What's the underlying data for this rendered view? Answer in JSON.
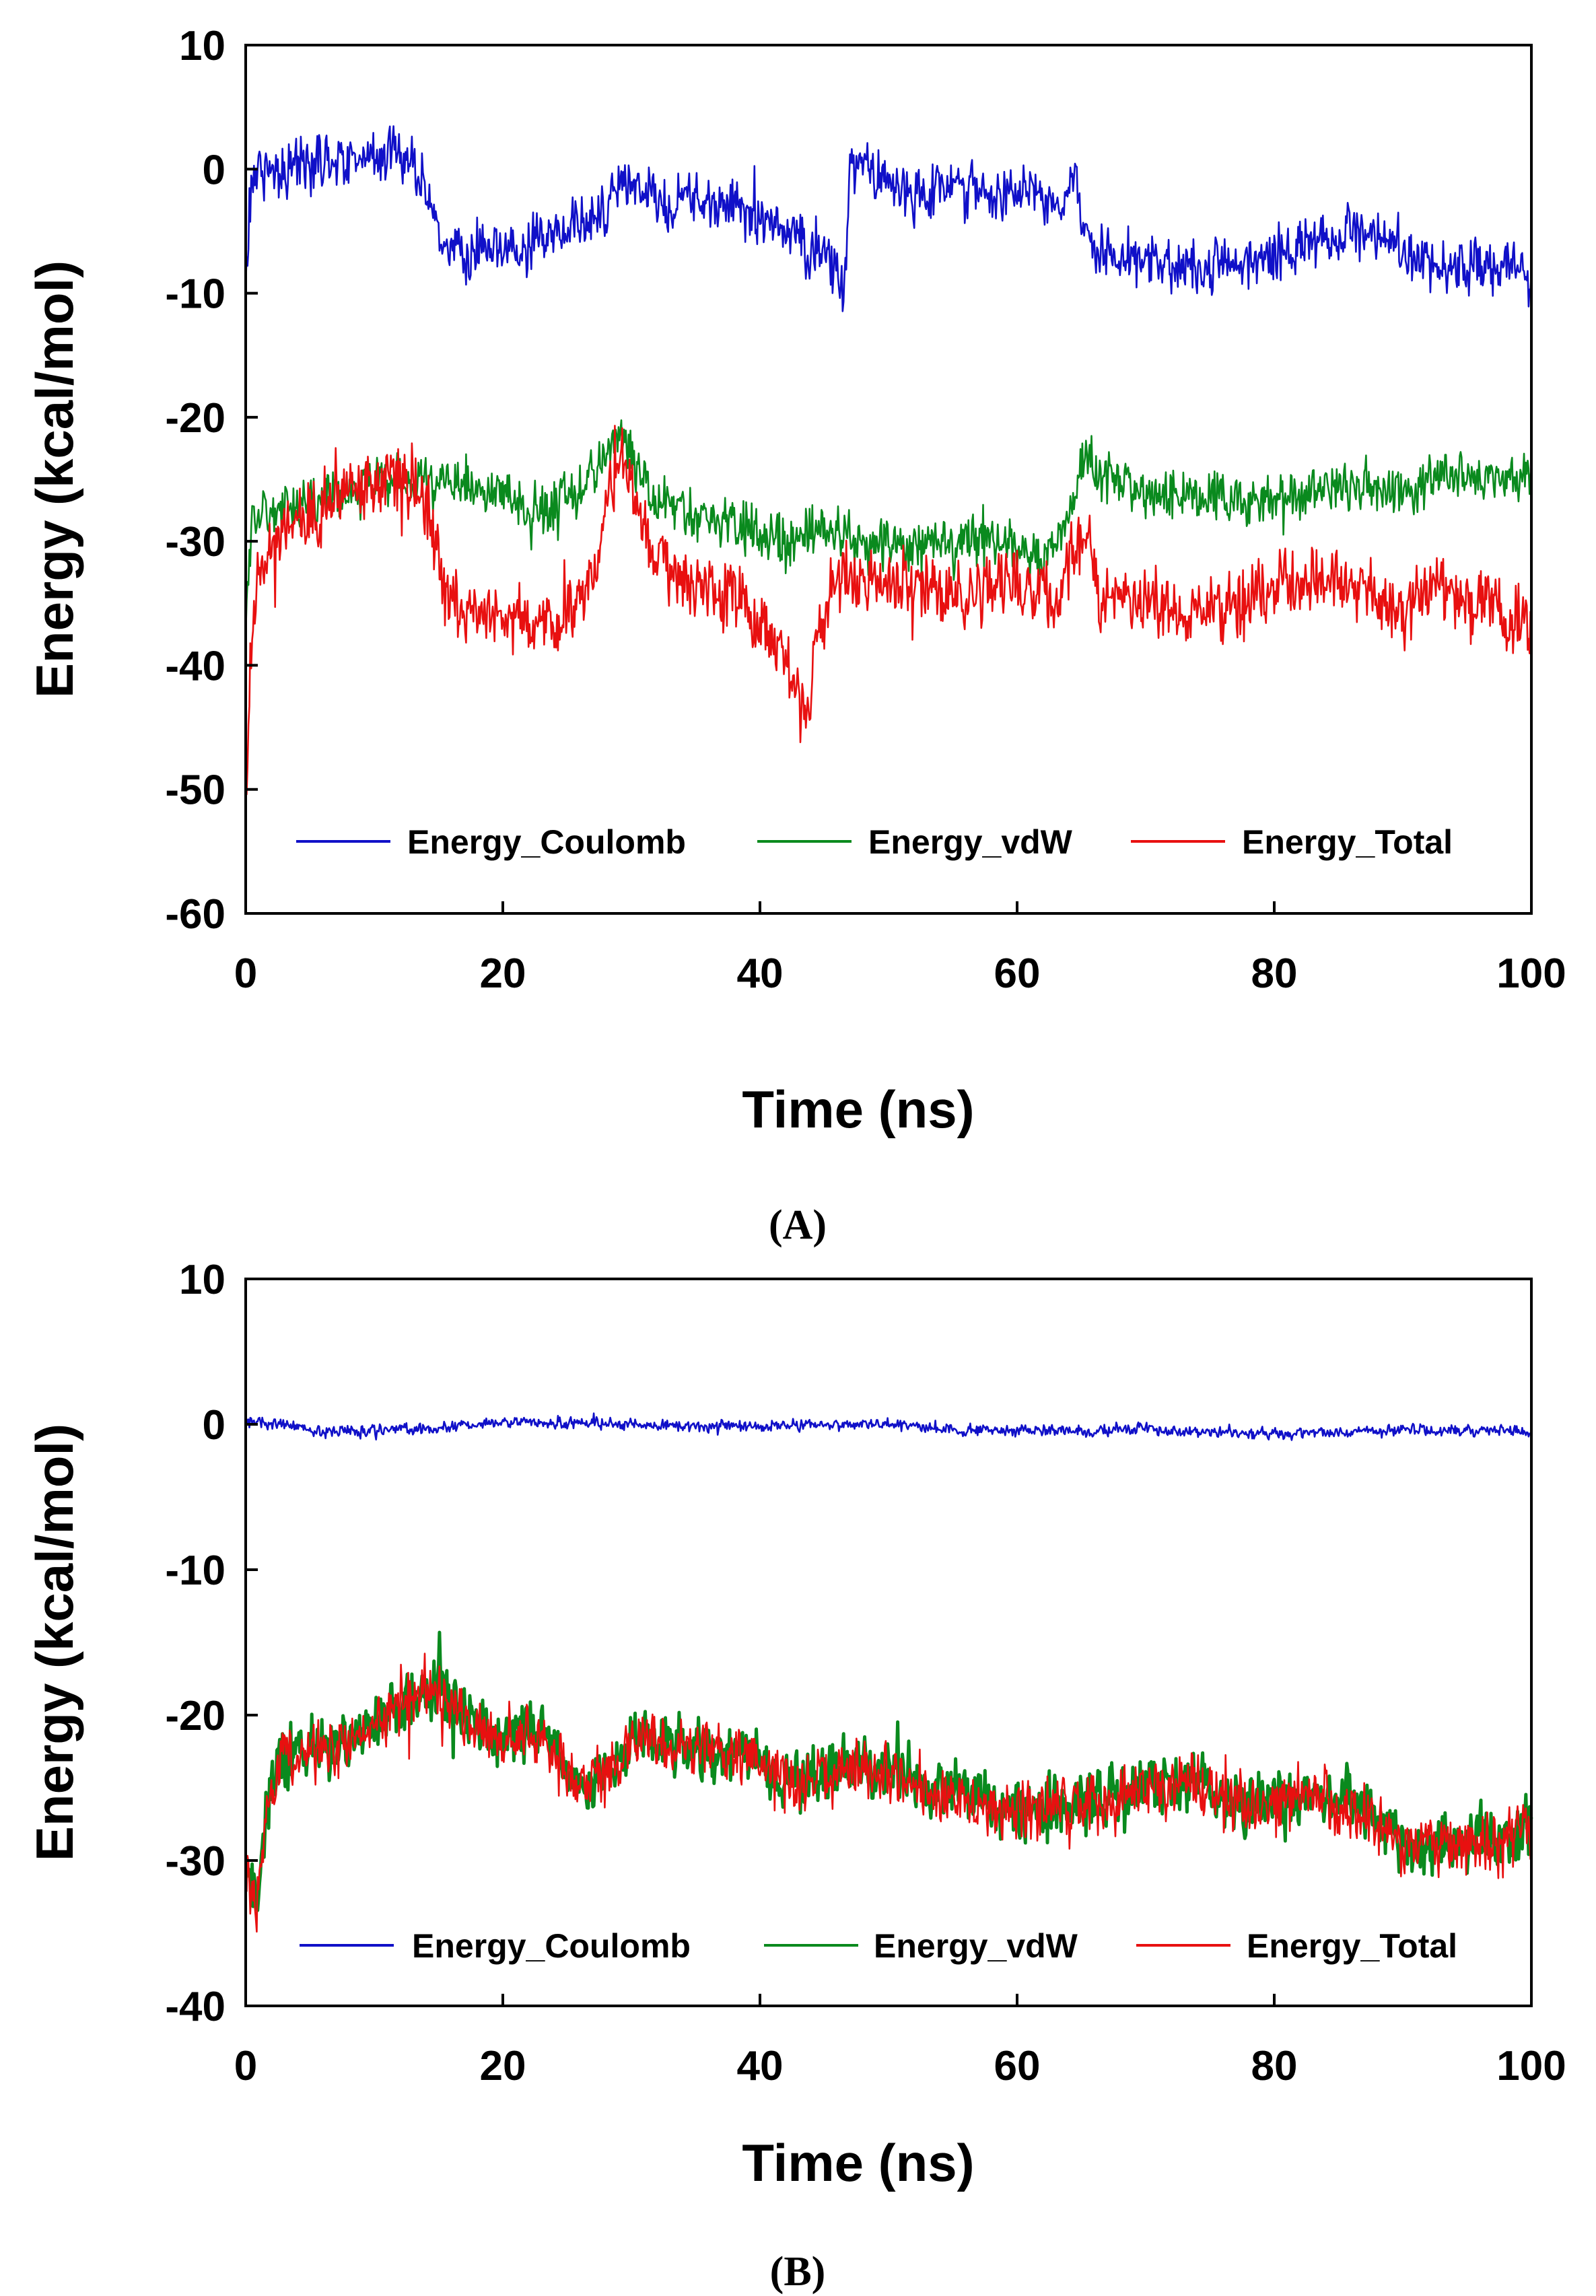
{
  "chart_data": [
    {
      "type": "line",
      "panel_label": "(A)",
      "title": "",
      "xlabel": "Time (ns)",
      "ylabel": "Energy (kcal/mol)",
      "xlim": [
        0,
        100
      ],
      "ylim": [
        -60,
        10
      ],
      "xticks": [
        0,
        20,
        40,
        60,
        80,
        100
      ],
      "yticks": [
        10,
        0,
        -10,
        -20,
        -30,
        -40,
        -50,
        -60
      ],
      "x_tick_labels": [
        "0",
        "20",
        "40",
        "60",
        "80",
        "100"
      ],
      "y_tick_labels": [
        "10",
        "0",
        "-10",
        "-20",
        "-30",
        "-40",
        "-50",
        "-60"
      ],
      "grid": false,
      "legend_position": "bottom",
      "series": [
        {
          "name": "Energy_Coulomb",
          "color": "#1010c8",
          "noise": 3.2,
          "anchors": [
            [
              0,
              -11
            ],
            [
              0.3,
              -2
            ],
            [
              0.8,
              0
            ],
            [
              3,
              0
            ],
            [
              7,
              1
            ],
            [
              10,
              1
            ],
            [
              12,
              1.5
            ],
            [
              13,
              0
            ],
            [
              14.5,
              -3
            ],
            [
              15.5,
              -6.5
            ],
            [
              18,
              -7
            ],
            [
              22,
              -6.5
            ],
            [
              25,
              -5
            ],
            [
              28,
              -3
            ],
            [
              30,
              -1
            ],
            [
              32,
              -3
            ],
            [
              35,
              -2.5
            ],
            [
              38,
              -3
            ],
            [
              40,
              -4
            ],
            [
              42,
              -5
            ],
            [
              44,
              -6.5
            ],
            [
              46,
              -8
            ],
            [
              46.6,
              -10
            ],
            [
              47,
              0
            ],
            [
              49,
              0
            ],
            [
              52,
              -2
            ],
            [
              55,
              -1
            ],
            [
              58,
              -2
            ],
            [
              61,
              -2
            ],
            [
              63,
              -2.5
            ],
            [
              64.5,
              -0.5
            ],
            [
              65.3,
              -5
            ],
            [
              67,
              -7
            ],
            [
              70,
              -7.5
            ],
            [
              73,
              -8
            ],
            [
              76,
              -8
            ],
            [
              80,
              -7
            ],
            [
              83,
              -6
            ],
            [
              86,
              -5
            ],
            [
              88,
              -5
            ],
            [
              90,
              -6.5
            ],
            [
              93,
              -8
            ],
            [
              96,
              -8
            ],
            [
              98,
              -8
            ],
            [
              100,
              -9
            ]
          ]
        },
        {
          "name": "Energy_vdW",
          "color": "#0a8a1e",
          "noise": 3.0,
          "anchors": [
            [
              0,
              -38
            ],
            [
              0.5,
              -28
            ],
            [
              2,
              -27.5
            ],
            [
              5,
              -27
            ],
            [
              8,
              -26
            ],
            [
              11,
              -25
            ],
            [
              13,
              -25.5
            ],
            [
              15,
              -25.5
            ],
            [
              18,
              -26
            ],
            [
              20,
              -26.5
            ],
            [
              23,
              -28
            ],
            [
              26,
              -26
            ],
            [
              28,
              -23
            ],
            [
              29,
              -21
            ],
            [
              30,
              -23
            ],
            [
              32,
              -27
            ],
            [
              35,
              -28
            ],
            [
              38,
              -28.5
            ],
            [
              40,
              -29
            ],
            [
              42,
              -30
            ],
            [
              44,
              -29
            ],
            [
              46,
              -29.5
            ],
            [
              48,
              -30
            ],
            [
              52,
              -30.5
            ],
            [
              56,
              -30
            ],
            [
              60,
              -30.5
            ],
            [
              62,
              -31
            ],
            [
              64,
              -29
            ],
            [
              65,
              -23
            ],
            [
              66,
              -24
            ],
            [
              67,
              -25
            ],
            [
              70,
              -26
            ],
            [
              75,
              -26.5
            ],
            [
              80,
              -26.5
            ],
            [
              85,
              -25.5
            ],
            [
              90,
              -26
            ],
            [
              93,
              -25
            ],
            [
              96,
              -24.5
            ],
            [
              100,
              -25
            ]
          ]
        },
        {
          "name": "Energy_Total",
          "color": "#e81010",
          "noise": 4.0,
          "anchors": [
            [
              0,
              -52
            ],
            [
              0.4,
              -40
            ],
            [
              1,
              -33
            ],
            [
              2,
              -30
            ],
            [
              5,
              -28
            ],
            [
              8,
              -26
            ],
            [
              11,
              -24.5
            ],
            [
              13,
              -25
            ],
            [
              14.5,
              -28
            ],
            [
              15.5,
              -35
            ],
            [
              18,
              -36
            ],
            [
              21,
              -36.5
            ],
            [
              24,
              -37
            ],
            [
              27,
              -33
            ],
            [
              28.5,
              -25
            ],
            [
              29.5,
              -24
            ],
            [
              31,
              -29
            ],
            [
              33,
              -33
            ],
            [
              36,
              -34
            ],
            [
              39,
              -35
            ],
            [
              41,
              -38
            ],
            [
              42.5,
              -41
            ],
            [
              43.5,
              -44
            ],
            [
              44.5,
              -38
            ],
            [
              46,
              -32
            ],
            [
              48,
              -33
            ],
            [
              52,
              -34
            ],
            [
              56,
              -34
            ],
            [
              60,
              -33.5
            ],
            [
              63,
              -35
            ],
            [
              64.5,
              -31
            ],
            [
              65.5,
              -30
            ],
            [
              66.5,
              -35
            ],
            [
              70,
              -35.5
            ],
            [
              74,
              -36
            ],
            [
              78,
              -35
            ],
            [
              81,
              -33
            ],
            [
              84,
              -33
            ],
            [
              87,
              -33.5
            ],
            [
              90,
              -36
            ],
            [
              93,
              -34
            ],
            [
              96,
              -35
            ],
            [
              98,
              -36
            ],
            [
              100,
              -37
            ]
          ]
        }
      ]
    },
    {
      "type": "line",
      "panel_label": "(B)",
      "title": "",
      "xlabel": "Time (ns)",
      "ylabel": "Energy (kcal/mol)",
      "xlim": [
        0,
        100
      ],
      "ylim": [
        -40,
        10
      ],
      "xticks": [
        0,
        20,
        40,
        60,
        80,
        100
      ],
      "yticks": [
        10,
        0,
        -10,
        -20,
        -30,
        -40
      ],
      "x_tick_labels": [
        "0",
        "20",
        "40",
        "60",
        "80",
        "100"
      ],
      "y_tick_labels": [
        "10",
        "0",
        "-10",
        "-20",
        "-30",
        "-40"
      ],
      "grid": false,
      "legend_position": "bottom",
      "series": [
        {
          "name": "Energy_Coulomb",
          "color": "#1010c8",
          "noise": 0.55,
          "anchors": [
            [
              0,
              0.2
            ],
            [
              3,
              0
            ],
            [
              6,
              -0.5
            ],
            [
              10,
              -0.4
            ],
            [
              15,
              -0.3
            ],
            [
              20,
              0.2
            ],
            [
              25,
              0.1
            ],
            [
              30,
              0
            ],
            [
              35,
              -0.1
            ],
            [
              40,
              -0.2
            ],
            [
              45,
              0
            ],
            [
              50,
              0
            ],
            [
              55,
              -0.4
            ],
            [
              60,
              -0.4
            ],
            [
              65,
              -0.5
            ],
            [
              70,
              -0.3
            ],
            [
              75,
              -0.6
            ],
            [
              80,
              -0.6
            ],
            [
              85,
              -0.5
            ],
            [
              90,
              -0.4
            ],
            [
              95,
              -0.4
            ],
            [
              100,
              -0.5
            ]
          ]
        },
        {
          "name": "Energy_vdW",
          "color": "#0a8a1e",
          "noise": 3.0,
          "anchors": [
            [
              0,
              -30
            ],
            [
              0.8,
              -34
            ],
            [
              1.5,
              -27
            ],
            [
              2.5,
              -23
            ],
            [
              5,
              -22
            ],
            [
              8,
              -22
            ],
            [
              11,
              -20
            ],
            [
              13,
              -18.5
            ],
            [
              15,
              -18
            ],
            [
              17,
              -20
            ],
            [
              20,
              -22
            ],
            [
              23,
              -21
            ],
            [
              26,
              -25
            ],
            [
              28,
              -24
            ],
            [
              30,
              -22
            ],
            [
              33,
              -21.5
            ],
            [
              36,
              -22
            ],
            [
              39,
              -23
            ],
            [
              41,
              -24
            ],
            [
              43,
              -25
            ],
            [
              45,
              -24
            ],
            [
              48,
              -23.5
            ],
            [
              51,
              -24
            ],
            [
              54,
              -25.5
            ],
            [
              57,
              -26
            ],
            [
              60,
              -26.5
            ],
            [
              63,
              -26
            ],
            [
              66,
              -26
            ],
            [
              70,
              -25
            ],
            [
              73,
              -24.5
            ],
            [
              76,
              -26
            ],
            [
              80,
              -26
            ],
            [
              84,
              -25.5
            ],
            [
              87,
              -26.5
            ],
            [
              90,
              -29
            ],
            [
              93,
              -29
            ],
            [
              96,
              -28.5
            ],
            [
              100,
              -28
            ]
          ]
        },
        {
          "name": "Energy_Total",
          "color": "#e81010",
          "noise": 3.0,
          "anchors": [
            [
              0,
              -30.2
            ],
            [
              0.8,
              -34.2
            ],
            [
              1.5,
              -27.2
            ],
            [
              2.5,
              -23.2
            ],
            [
              5,
              -22.2
            ],
            [
              8,
              -22.2
            ],
            [
              11,
              -20.2
            ],
            [
              13,
              -18.7
            ],
            [
              15,
              -18.2
            ],
            [
              17,
              -20.2
            ],
            [
              20,
              -22.2
            ],
            [
              23,
              -21.2
            ],
            [
              26,
              -25.2
            ],
            [
              28,
              -24.2
            ],
            [
              30,
              -22.2
            ],
            [
              33,
              -21.7
            ],
            [
              36,
              -22.2
            ],
            [
              39,
              -23.2
            ],
            [
              41,
              -24.2
            ],
            [
              43,
              -25.2
            ],
            [
              45,
              -24.2
            ],
            [
              48,
              -23.7
            ],
            [
              51,
              -24.2
            ],
            [
              54,
              -25.7
            ],
            [
              57,
              -26.2
            ],
            [
              60,
              -26.7
            ],
            [
              63,
              -26.2
            ],
            [
              66,
              -26.2
            ],
            [
              70,
              -25.2
            ],
            [
              73,
              -24.7
            ],
            [
              76,
              -26.2
            ],
            [
              80,
              -26.2
            ],
            [
              84,
              -25.7
            ],
            [
              87,
              -26.7
            ],
            [
              90,
              -29.2
            ],
            [
              93,
              -29.2
            ],
            [
              96,
              -28.7
            ],
            [
              100,
              -28.2
            ]
          ]
        }
      ]
    }
  ]
}
